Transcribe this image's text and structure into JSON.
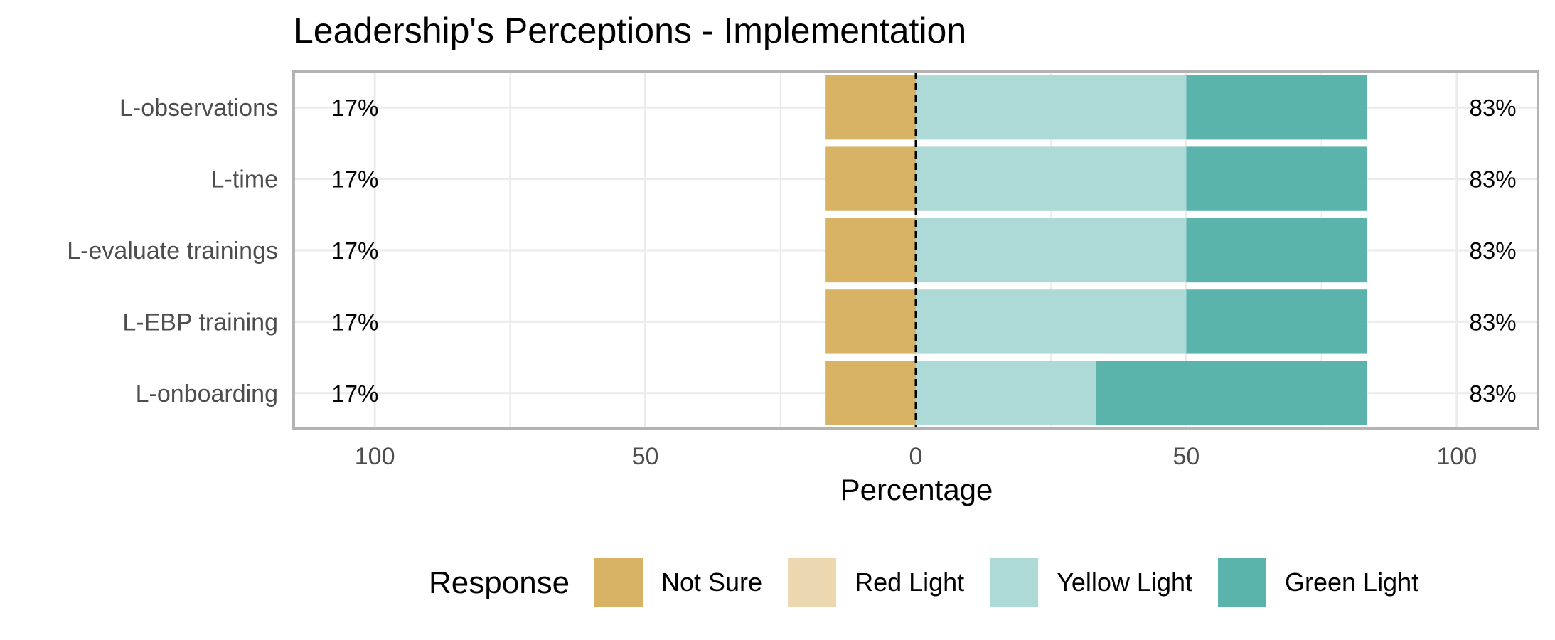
{
  "chart_data": {
    "type": "bar",
    "orientation": "horizontal",
    "stacked": true,
    "diverging": true,
    "title": "Leadership's Perceptions - Implementation",
    "xlabel": "Percentage",
    "ylabel": "",
    "xlim": [
      -115,
      115
    ],
    "x_ticks": [
      -100,
      -50,
      0,
      50,
      100
    ],
    "x_tick_labels": [
      "100",
      "50",
      "0",
      "50",
      "100"
    ],
    "grid": true,
    "legend_position": "bottom",
    "legend_title": "Response",
    "categories": [
      "L-observations",
      "L-time",
      "L-evaluate trainings",
      "L-EBP training",
      "L-onboarding"
    ],
    "series": [
      {
        "name": "Not Sure",
        "color": "#D8B365",
        "side": "negative",
        "values": [
          16.67,
          16.67,
          16.67,
          16.67,
          16.67
        ]
      },
      {
        "name": "Red Light",
        "color": "#EBD8B1",
        "side": "negative",
        "values": [
          0,
          0,
          0,
          0,
          0
        ]
      },
      {
        "name": "Yellow Light",
        "color": "#ADD9D6",
        "side": "positive",
        "values": [
          50,
          50,
          50,
          50,
          33.33
        ]
      },
      {
        "name": "Green Light",
        "color": "#5AB4AC",
        "side": "positive",
        "values": [
          33.33,
          33.33,
          33.33,
          33.33,
          50
        ]
      }
    ],
    "left_labels": [
      "17%",
      "17%",
      "17%",
      "17%",
      "17%"
    ],
    "right_labels": [
      "83%",
      "83%",
      "83%",
      "83%",
      "83%"
    ]
  }
}
